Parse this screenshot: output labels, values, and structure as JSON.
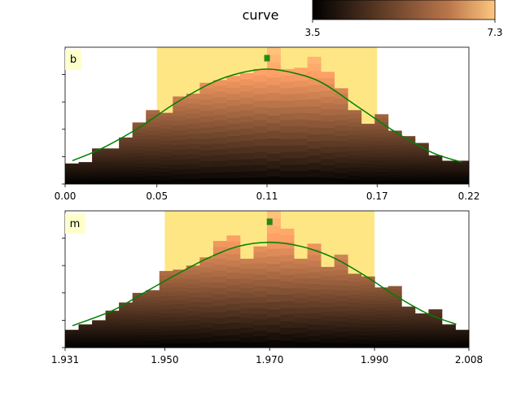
{
  "colorbar": {
    "title": "curve",
    "min_label": "3.5",
    "max_label": "7.3",
    "colormap": "copper"
  },
  "colors": {
    "band": "#ffe066",
    "curve": "#008000",
    "label_box": "#ffffcc"
  },
  "chart_data": [
    {
      "type": "bar",
      "panel_label": "b",
      "xlim": [
        0.0,
        0.22
      ],
      "ylim": [
        0,
        1.0
      ],
      "x_ticks": [
        0.0,
        0.05,
        0.11,
        0.17,
        0.22
      ],
      "x_tick_labels": [
        "0.00",
        "0.05",
        "0.11",
        "0.17",
        "0.22"
      ],
      "y_tick_count": 5,
      "y_tick_labels": [],
      "highlight_range": [
        0.05,
        0.17
      ],
      "marker": {
        "x": 0.11,
        "y": 0.92
      },
      "bar_width": 0.00733,
      "bars": [
        {
          "x": 0.00367,
          "value": 0.15
        },
        {
          "x": 0.011,
          "value": 0.16
        },
        {
          "x": 0.01833,
          "value": 0.26
        },
        {
          "x": 0.02567,
          "value": 0.26
        },
        {
          "x": 0.033,
          "value": 0.34
        },
        {
          "x": 0.04033,
          "value": 0.45
        },
        {
          "x": 0.04767,
          "value": 0.54
        },
        {
          "x": 0.055,
          "value": 0.52
        },
        {
          "x": 0.06233,
          "value": 0.64
        },
        {
          "x": 0.06967,
          "value": 0.66
        },
        {
          "x": 0.077,
          "value": 0.74
        },
        {
          "x": 0.08433,
          "value": 0.76
        },
        {
          "x": 0.09167,
          "value": 0.79
        },
        {
          "x": 0.099,
          "value": 0.81
        },
        {
          "x": 0.10633,
          "value": 0.84
        },
        {
          "x": 0.11367,
          "value": 1.0
        },
        {
          "x": 0.121,
          "value": 0.84
        },
        {
          "x": 0.12833,
          "value": 0.85
        },
        {
          "x": 0.13567,
          "value": 0.93
        },
        {
          "x": 0.143,
          "value": 0.82
        },
        {
          "x": 0.15033,
          "value": 0.7
        },
        {
          "x": 0.15767,
          "value": 0.54
        },
        {
          "x": 0.165,
          "value": 0.44
        },
        {
          "x": 0.17233,
          "value": 0.51
        },
        {
          "x": 0.17967,
          "value": 0.39
        },
        {
          "x": 0.187,
          "value": 0.35
        },
        {
          "x": 0.19433,
          "value": 0.3
        },
        {
          "x": 0.20167,
          "value": 0.21
        },
        {
          "x": 0.209,
          "value": 0.17
        },
        {
          "x": 0.21633,
          "value": 0.17
        }
      ],
      "curve": {
        "x": [
          0.004,
          0.02,
          0.04,
          0.06,
          0.08,
          0.095,
          0.11,
          0.125,
          0.14,
          0.16,
          0.18,
          0.2,
          0.216
        ],
        "y": [
          0.17,
          0.26,
          0.41,
          0.59,
          0.74,
          0.81,
          0.84,
          0.81,
          0.74,
          0.56,
          0.38,
          0.23,
          0.16
        ]
      }
    },
    {
      "type": "bar",
      "panel_label": "m",
      "xlim": [
        1.931,
        2.008
      ],
      "ylim": [
        0,
        1.0
      ],
      "x_ticks": [
        1.931,
        1.95,
        1.97,
        1.99,
        2.008
      ],
      "x_tick_labels": [
        "1.931",
        "1.950",
        "1.970",
        "1.990",
        "2.008"
      ],
      "y_tick_count": 5,
      "y_tick_labels": [],
      "highlight_range": [
        1.95,
        1.99
      ],
      "marker": {
        "x": 1.97,
        "y": 0.92
      },
      "bar_width": 0.002567,
      "bars": [
        {
          "x": 1.93228,
          "value": 0.13
        },
        {
          "x": 1.93485,
          "value": 0.17
        },
        {
          "x": 1.93742,
          "value": 0.2
        },
        {
          "x": 1.93998,
          "value": 0.27
        },
        {
          "x": 1.94255,
          "value": 0.33
        },
        {
          "x": 1.94512,
          "value": 0.4
        },
        {
          "x": 1.94768,
          "value": 0.42
        },
        {
          "x": 1.95025,
          "value": 0.56
        },
        {
          "x": 1.95282,
          "value": 0.57
        },
        {
          "x": 1.95538,
          "value": 0.6
        },
        {
          "x": 1.95795,
          "value": 0.66
        },
        {
          "x": 1.96052,
          "value": 0.78
        },
        {
          "x": 1.96308,
          "value": 0.82
        },
        {
          "x": 1.96565,
          "value": 0.65
        },
        {
          "x": 1.96822,
          "value": 0.74
        },
        {
          "x": 1.97078,
          "value": 1.0
        },
        {
          "x": 1.97335,
          "value": 0.87
        },
        {
          "x": 1.97592,
          "value": 0.65
        },
        {
          "x": 1.97848,
          "value": 0.76
        },
        {
          "x": 1.98105,
          "value": 0.59
        },
        {
          "x": 1.98362,
          "value": 0.68
        },
        {
          "x": 1.98618,
          "value": 0.54
        },
        {
          "x": 1.98875,
          "value": 0.52
        },
        {
          "x": 1.99132,
          "value": 0.44
        },
        {
          "x": 1.99388,
          "value": 0.45
        },
        {
          "x": 1.99645,
          "value": 0.3
        },
        {
          "x": 1.99902,
          "value": 0.25
        },
        {
          "x": 2.00158,
          "value": 0.28
        },
        {
          "x": 2.00415,
          "value": 0.17
        },
        {
          "x": 2.00672,
          "value": 0.13
        }
      ],
      "curve": {
        "x": [
          1.9324,
          1.94,
          1.946,
          1.952,
          1.958,
          1.964,
          1.97,
          1.976,
          1.982,
          1.988,
          1.994,
          2.0,
          2.0056
        ],
        "y": [
          0.16,
          0.27,
          0.4,
          0.53,
          0.65,
          0.74,
          0.77,
          0.74,
          0.66,
          0.53,
          0.38,
          0.25,
          0.17
        ]
      }
    }
  ]
}
